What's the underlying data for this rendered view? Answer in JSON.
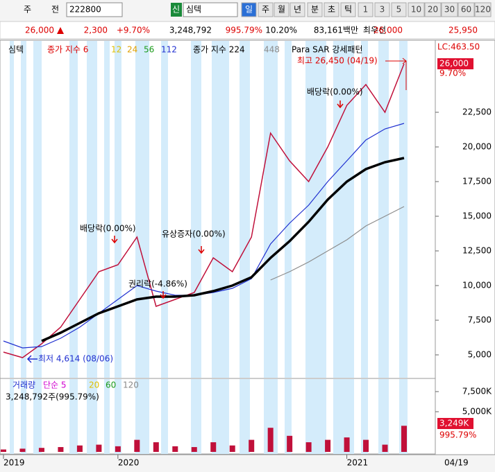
{
  "toolbar": {
    "market": "주",
    "prev": "전",
    "code": "222800",
    "credit": "신",
    "name": "심텍",
    "periods": [
      "일",
      "주",
      "월",
      "년",
      "분",
      "초",
      "틱",
      "1",
      "3",
      "5",
      "10",
      "20",
      "30",
      "60",
      "120"
    ]
  },
  "quote": {
    "price": "26,000",
    "change": "2,300",
    "rate": "+9.70%",
    "volume": "3,248,792",
    "volume_rate": "995.79%",
    "turnover": "10.20%",
    "amount": "83,161백만",
    "best_label": "최우선",
    "ask": "26,000",
    "bid": "25,950"
  },
  "chart_data": {
    "type": "line",
    "legend": [
      "심텍",
      "종가 지수 6",
      "12",
      "24",
      "56",
      "112",
      "종가 지수 224",
      "448",
      "Para SAR 강세패턴"
    ],
    "corner_info": "LC:463.50",
    "last_price_label": "26,000",
    "last_rate_label": "9.70%",
    "date_label": "04/19",
    "annotations": [
      "최고 26,450 (04/19)",
      "최저 4,614 (08/06)",
      "배당락(0.00%)",
      "유상증자(0.00%)",
      "권리락(-4.86%)",
      "배당락(0.00%)"
    ],
    "categories": [
      "2019",
      null,
      null,
      null,
      null,
      null,
      "2020",
      null,
      null,
      null,
      null,
      null,
      null,
      null,
      null,
      null,
      null,
      null,
      "2021",
      null,
      null,
      null
    ],
    "ylim": [
      3350,
      27600
    ],
    "yticks": [
      {
        "value": 5000,
        "label": "5,000"
      },
      {
        "value": 7500,
        "label": "7,500"
      },
      {
        "value": 10000,
        "label": "10,000"
      },
      {
        "value": 12500,
        "label": "12,500"
      },
      {
        "value": 15000,
        "label": "15,000"
      },
      {
        "value": 17500,
        "label": "17,500"
      },
      {
        "value": 20000,
        "label": "20,000"
      },
      {
        "value": 22500,
        "label": "22,500"
      }
    ],
    "series": [
      {
        "name": "심텍",
        "color": "#c0103a",
        "values": [
          5200,
          4800,
          5800,
          7000,
          9000,
          11000,
          11500,
          13500,
          8500,
          9000,
          9500,
          12000,
          11000,
          13500,
          21000,
          19000,
          17500,
          20000,
          23000,
          24500,
          22500,
          26000
        ]
      },
      {
        "name": "112",
        "color": "#1f2fd0",
        "values": [
          6000,
          5500,
          5600,
          6200,
          7000,
          8000,
          9000,
          10000,
          9600,
          9300,
          9300,
          9500,
          9800,
          10500,
          13000,
          14500,
          15800,
          17500,
          19000,
          20500,
          21300,
          21700
        ]
      },
      {
        "name": "종가 지수 224",
        "color": "#000000",
        "values": [
          null,
          null,
          6000,
          6600,
          7300,
          8000,
          8500,
          9000,
          9200,
          9200,
          9300,
          9600,
          10000,
          10600,
          12000,
          13200,
          14600,
          16200,
          17500,
          18400,
          18900,
          19200
        ]
      },
      {
        "name": "448",
        "color": "#8c8c8c",
        "values": [
          null,
          null,
          null,
          null,
          null,
          null,
          null,
          null,
          null,
          null,
          null,
          null,
          null,
          null,
          10400,
          11000,
          11700,
          12500,
          13300,
          14300,
          15000,
          15700
        ]
      }
    ],
    "volume": {
      "legend": [
        "거래량",
        "단순 5",
        "20",
        "60",
        "120"
      ],
      "info": "3,248,792주(995.79%)",
      "color": "#c0103a",
      "values": [
        300,
        400,
        500,
        600,
        800,
        900,
        700,
        1500,
        1200,
        700,
        600,
        1200,
        800,
        1500,
        3000,
        2000,
        1200,
        1500,
        1800,
        1500,
        900,
        3249
      ],
      "ylim": [
        0,
        8966
      ],
      "yticks": [
        {
          "value": 5000,
          "label": "5,000K"
        },
        {
          "value": 7500,
          "label": "7,500K"
        }
      ],
      "last_label": "3,249K",
      "last_rate": "995.79%"
    }
  }
}
